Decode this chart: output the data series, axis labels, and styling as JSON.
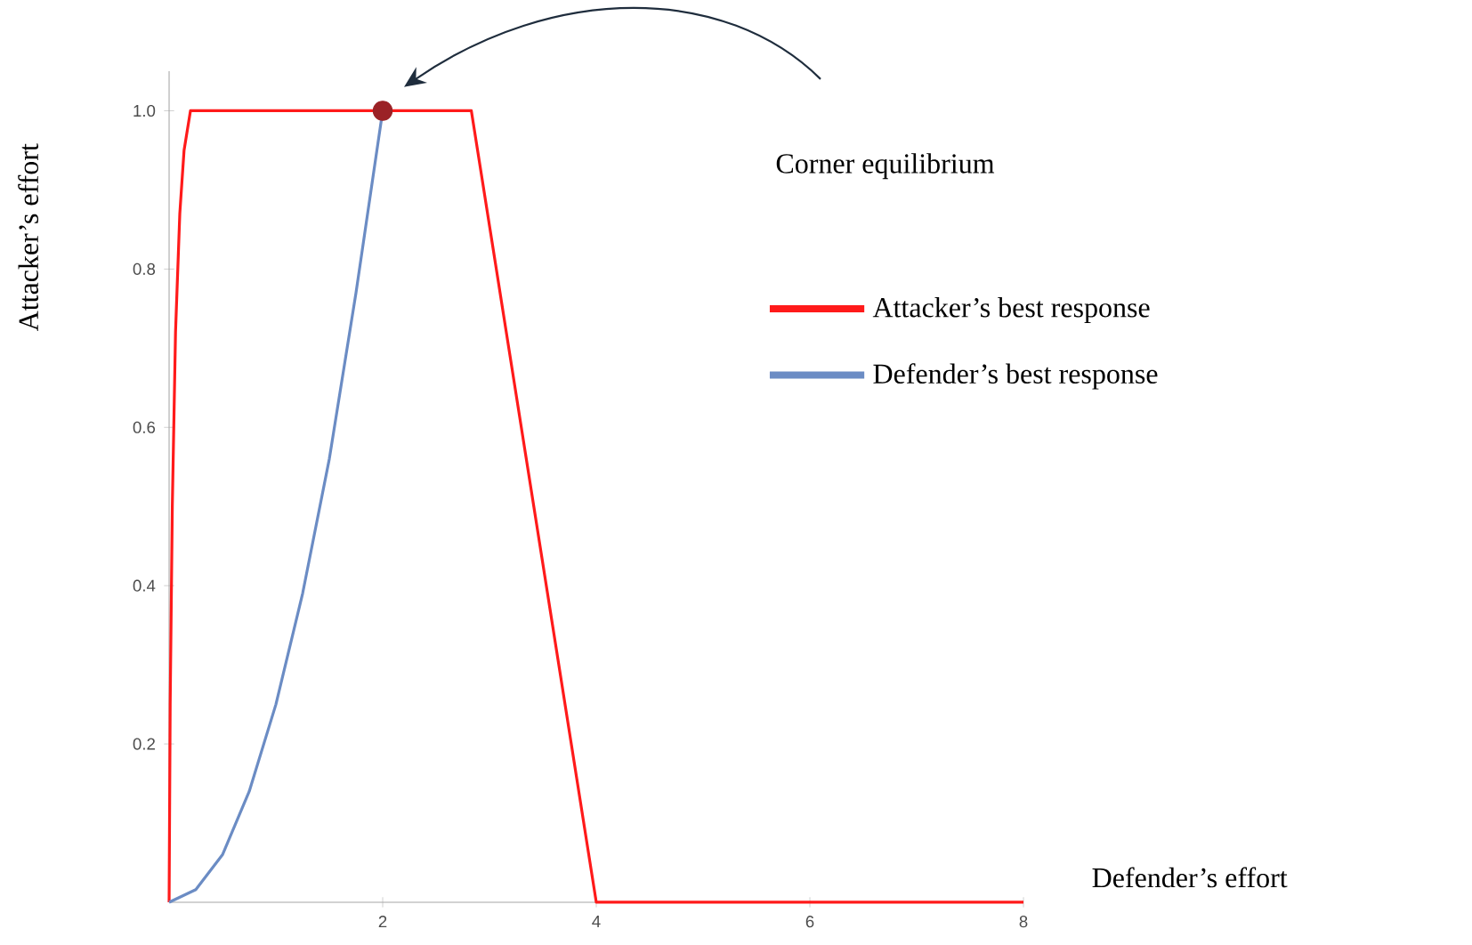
{
  "chart_data": {
    "type": "line",
    "xlabel": "Defender’s effort",
    "ylabel": "Attacker’s effort",
    "xlim": [
      0,
      8
    ],
    "ylim": [
      0,
      1.05
    ],
    "xticks": [
      2,
      4,
      6,
      8
    ],
    "yticks": [
      0.2,
      0.4,
      0.6,
      0.8,
      {
        "value": 1,
        "label": "1.0"
      }
    ],
    "legend": "right",
    "series": [
      {
        "name": "Attacker’s best response",
        "color": "#ff1a1a",
        "x": [
          0,
          0.01,
          0.03,
          0.06,
          0.1,
          0.14,
          0.2,
          2.83,
          4,
          8
        ],
        "values": [
          0,
          0.25,
          0.5,
          0.72,
          0.87,
          0.95,
          1,
          1,
          0,
          0
        ]
      },
      {
        "name": "Defender’s best response",
        "color": "#6b8cc4",
        "x": [
          0,
          0.25,
          0.5,
          0.75,
          1,
          1.25,
          1.5,
          1.75,
          2
        ],
        "values": [
          0,
          0.016,
          0.06,
          0.14,
          0.25,
          0.39,
          0.56,
          0.77,
          1
        ]
      },
      {
        "type": "scatter",
        "color": "#9b2226",
        "x": [
          2
        ],
        "values": [
          1
        ]
      }
    ],
    "annotations": [
      "Corner equilibrium"
    ]
  }
}
